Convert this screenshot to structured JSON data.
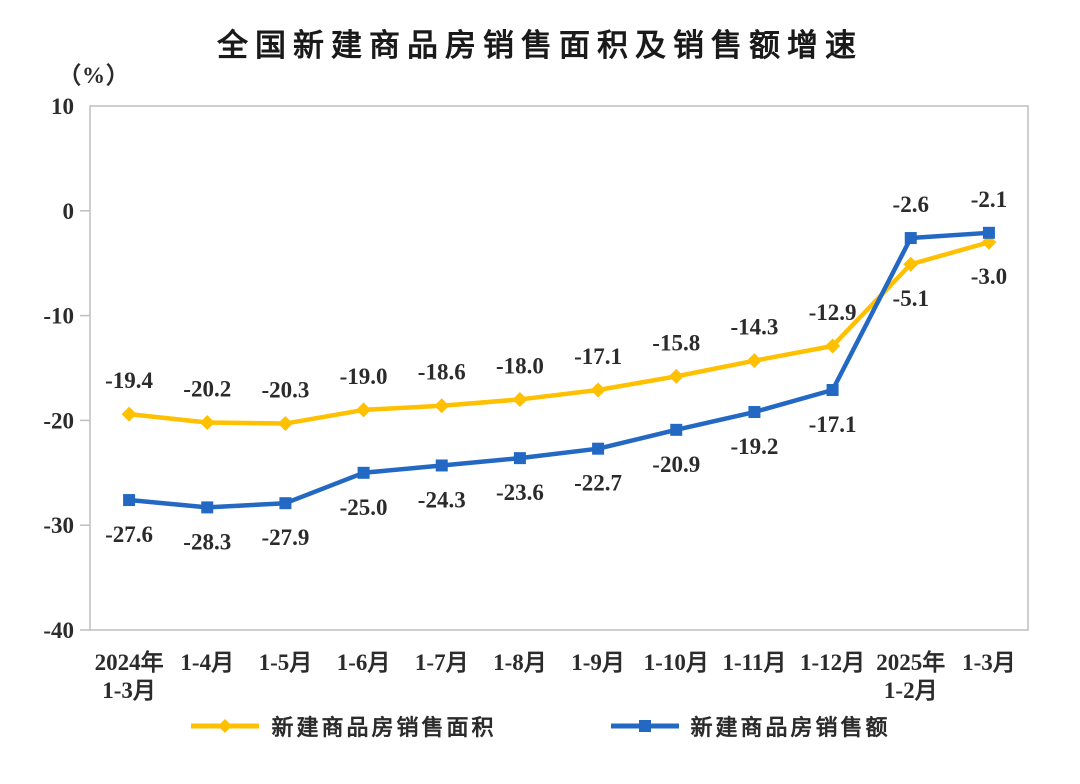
{
  "chart_data": {
    "type": "line",
    "title": "全国新建商品房销售面积及销售额增速",
    "unit_label": "（%）",
    "categories": [
      "2024年\n1-3月",
      "1-4月",
      "1-5月",
      "1-6月",
      "1-7月",
      "1-8月",
      "1-9月",
      "1-10月",
      "1-11月",
      "1-12月",
      "2025年\n1-2月",
      "1-3月"
    ],
    "ylim": [
      -40,
      10
    ],
    "yticks": [
      10,
      0,
      -10,
      -20,
      -30,
      -40
    ],
    "grid": false,
    "legend_position": "bottom",
    "colors": {
      "axis_border": "#BFBFBF",
      "text": "#2b2b2b",
      "series_area": "#FFC000",
      "series_amount": "#2369C3"
    },
    "series": [
      {
        "name": "新建商品房销售面积",
        "color": "#FFC000",
        "marker": "diamond",
        "values": [
          -19.4,
          -20.2,
          -20.3,
          -19.0,
          -18.6,
          -18.0,
          -17.1,
          -15.8,
          -14.3,
          -12.9,
          -5.1,
          -3.0
        ],
        "label_side": [
          "above",
          "above",
          "above",
          "above",
          "above",
          "above",
          "above",
          "above",
          "above",
          "above",
          "below",
          "below"
        ]
      },
      {
        "name": "新建商品房销售额",
        "color": "#2369C3",
        "marker": "square",
        "values": [
          -27.6,
          -28.3,
          -27.9,
          -25.0,
          -24.3,
          -23.6,
          -22.7,
          -20.9,
          -19.2,
          -17.1,
          -2.6,
          -2.1
        ],
        "label_side": [
          "below",
          "below",
          "below",
          "below",
          "below",
          "below",
          "below",
          "below",
          "below",
          "below",
          "above",
          "above"
        ]
      }
    ]
  }
}
